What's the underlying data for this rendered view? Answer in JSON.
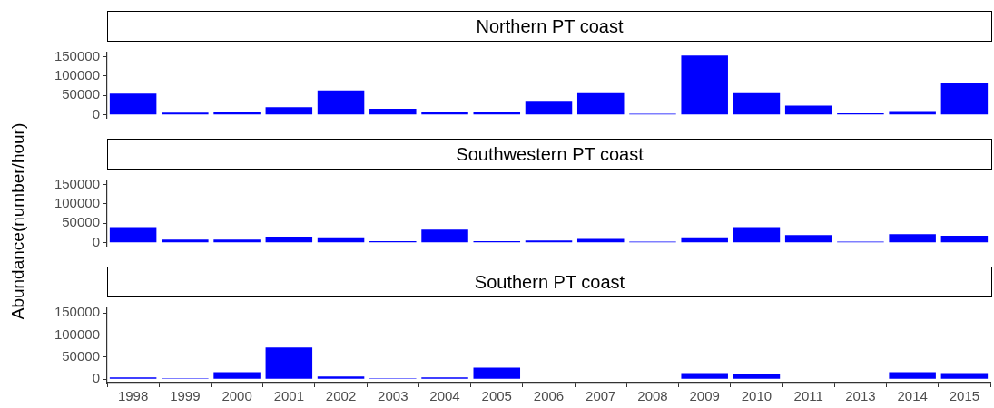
{
  "chart_data": [
    {
      "type": "bar",
      "title": "Northern PT coast",
      "categories": [
        "1998",
        "1999",
        "2000",
        "2001",
        "2002",
        "2003",
        "2004",
        "2005",
        "2006",
        "2007",
        "2008",
        "2009",
        "2010",
        "2011",
        "2013",
        "2014",
        "2015"
      ],
      "series": [
        {
          "color": "#0000ff",
          "values": [
            55000,
            6000,
            8000,
            20000,
            63000,
            16000,
            8000,
            8000,
            36000,
            56000,
            3000,
            153000,
            56000,
            24000,
            4000,
            10000,
            81000
          ]
        }
      ],
      "ylim": [
        -7650,
        160650
      ],
      "yticks": [
        0,
        50000,
        100000,
        150000
      ],
      "tick_labels": "y"
    },
    {
      "type": "bar",
      "title": "Southwestern PT coast",
      "ylabel": "Abundance(number/hour)",
      "categories": [
        "1998",
        "1999",
        "2000",
        "2001",
        "2002",
        "2003",
        "2004",
        "2005",
        "2006",
        "2007",
        "2008",
        "2009",
        "2010",
        "2011",
        "2013",
        "2014",
        "2015"
      ],
      "series": [
        {
          "color": "#0000ff",
          "values": [
            40000,
            8000,
            8000,
            16000,
            14000,
            4000,
            34000,
            4000,
            6000,
            10000,
            3000,
            14000,
            40000,
            20000,
            3000,
            22000,
            18000
          ]
        }
      ],
      "ylim": [
        -7650,
        160650
      ],
      "yticks": [
        0,
        50000,
        100000,
        150000
      ],
      "tick_labels": "y"
    },
    {
      "type": "bar",
      "title": "Southern PT coast",
      "categories": [
        "1998",
        "1999",
        "2000",
        "2001",
        "2002",
        "2003",
        "2004",
        "2005",
        "2006",
        "2007",
        "2008",
        "2009",
        "2010",
        "2011",
        "2013",
        "2014",
        "2015"
      ],
      "series": [
        {
          "color": "#0000ff",
          "values": [
            4000,
            2000,
            16000,
            72000,
            6000,
            2000,
            4000,
            26000,
            null,
            null,
            null,
            14000,
            12000,
            null,
            null,
            16000,
            14000
          ]
        }
      ],
      "ylim": [
        -7650,
        160650
      ],
      "yticks": [
        0,
        50000,
        100000,
        150000
      ]
    }
  ]
}
